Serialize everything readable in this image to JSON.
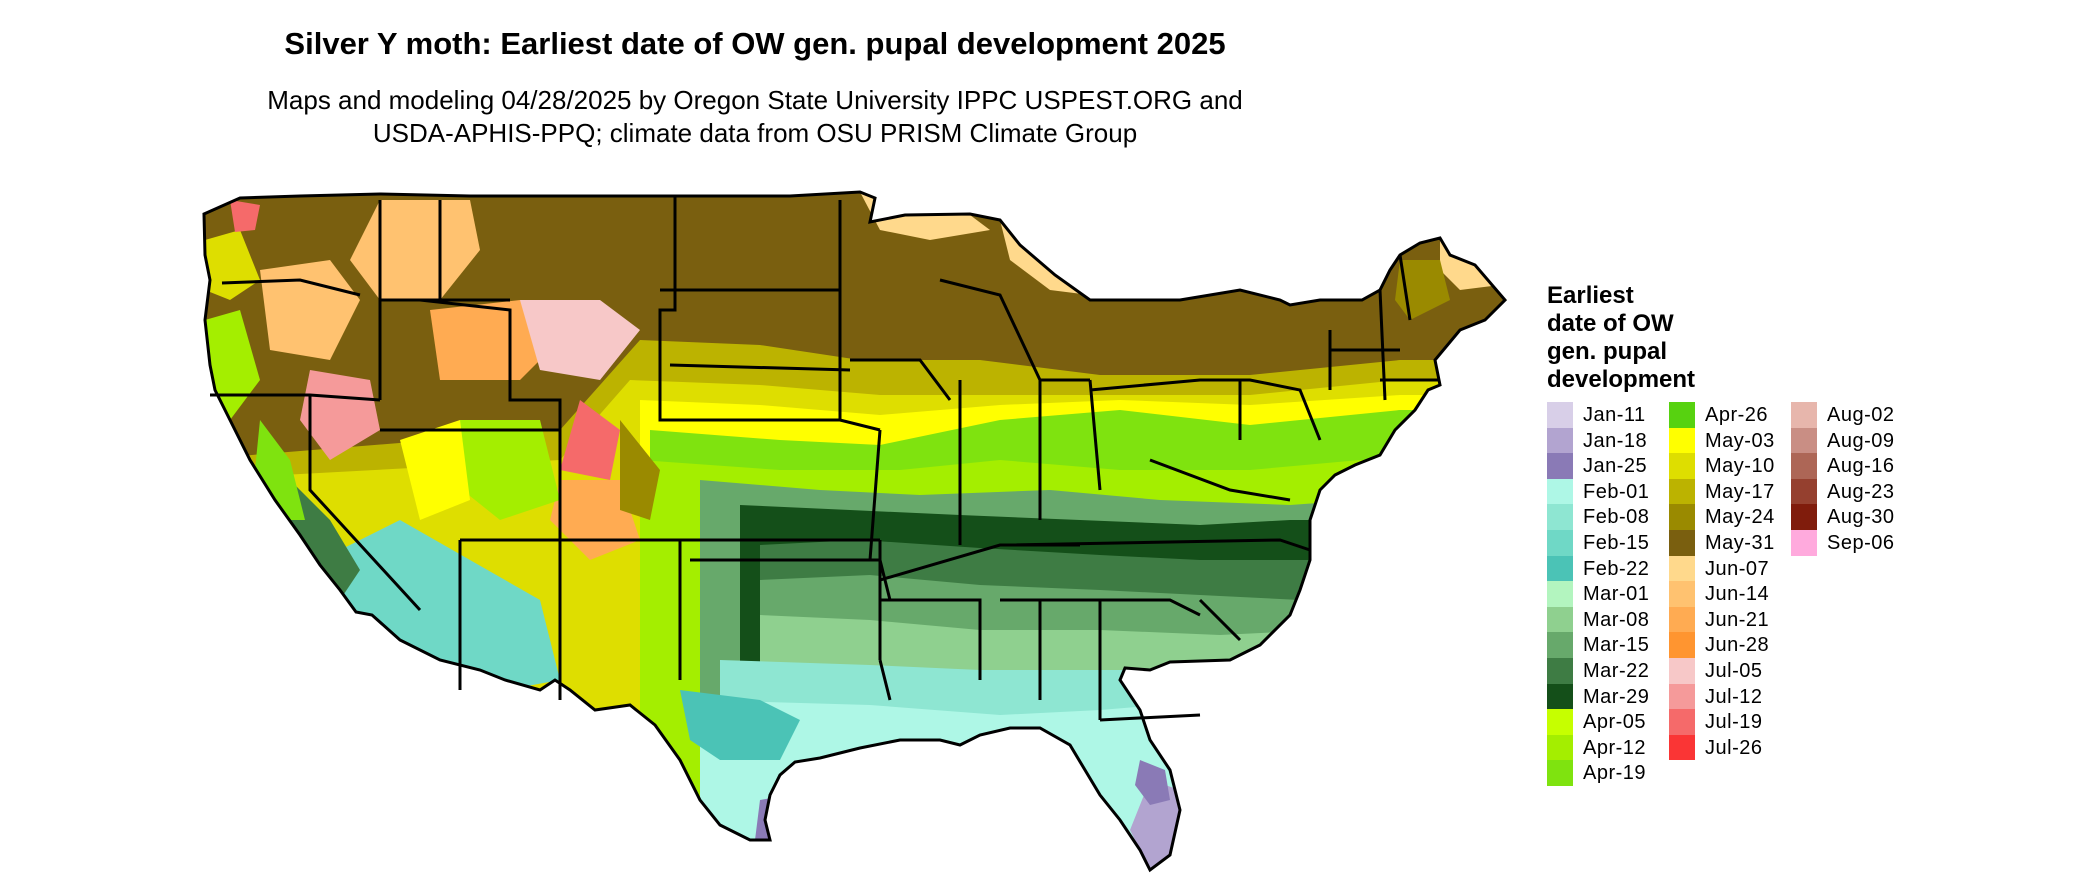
{
  "title": "Silver Y moth: Earliest date of OW gen. pupal development 2025",
  "subtitle": [
    "Maps and modeling 04/28/2025 by Oregon State University IPPC USPEST.ORG and",
    "USDA-APHIS-PPQ; climate data from OSU PRISM Climate Group"
  ],
  "legend": {
    "title": [
      "Earliest",
      "date of OW",
      "gen. pupal",
      "development"
    ],
    "items": [
      {
        "label": "Jan-11",
        "color": "#d8cfe8"
      },
      {
        "label": "Jan-18",
        "color": "#b2a4d0"
      },
      {
        "label": "Jan-25",
        "color": "#8a7ab6"
      },
      {
        "label": "Feb-01",
        "color": "#aef7e6"
      },
      {
        "label": "Feb-08",
        "color": "#8ee6d2"
      },
      {
        "label": "Feb-15",
        "color": "#6fd8c6"
      },
      {
        "label": "Feb-22",
        "color": "#4bc3b6"
      },
      {
        "label": "Mar-01",
        "color": "#b3f5bf"
      },
      {
        "label": "Mar-08",
        "color": "#8fd08f"
      },
      {
        "label": "Mar-15",
        "color": "#67a96b"
      },
      {
        "label": "Mar-22",
        "color": "#3e7c44"
      },
      {
        "label": "Mar-29",
        "color": "#144f19"
      },
      {
        "label": "Apr-05",
        "color": "#c6ff00"
      },
      {
        "label": "Apr-12",
        "color": "#a4ee00"
      },
      {
        "label": "Apr-19",
        "color": "#7fe30f"
      },
      {
        "label": "Apr-26",
        "color": "#57d210"
      },
      {
        "label": "May-03",
        "color": "#ffff00"
      },
      {
        "label": "May-10",
        "color": "#dede00"
      },
      {
        "label": "May-17",
        "color": "#bcb300"
      },
      {
        "label": "May-24",
        "color": "#9a8a00"
      },
      {
        "label": "May-31",
        "color": "#7a5f0f"
      },
      {
        "label": "Jun-07",
        "color": "#ffd98c"
      },
      {
        "label": "Jun-14",
        "color": "#ffc270"
      },
      {
        "label": "Jun-21",
        "color": "#ffab52"
      },
      {
        "label": "Jun-28",
        "color": "#ff9530"
      },
      {
        "label": "Jul-05",
        "color": "#f7c8c8"
      },
      {
        "label": "Jul-12",
        "color": "#f59a9a"
      },
      {
        "label": "Jul-19",
        "color": "#f56a6a"
      },
      {
        "label": "Jul-26",
        "color": "#fa3535"
      },
      {
        "label": "Aug-02",
        "color": "#e7b6ac"
      },
      {
        "label": "Aug-09",
        "color": "#c98e84"
      },
      {
        "label": "Aug-16",
        "color": "#ad6656"
      },
      {
        "label": "Aug-23",
        "color": "#95402f"
      },
      {
        "label": "Aug-30",
        "color": "#801c0c"
      },
      {
        "label": "Sep-06",
        "color": "#ffaadd"
      }
    ]
  }
}
